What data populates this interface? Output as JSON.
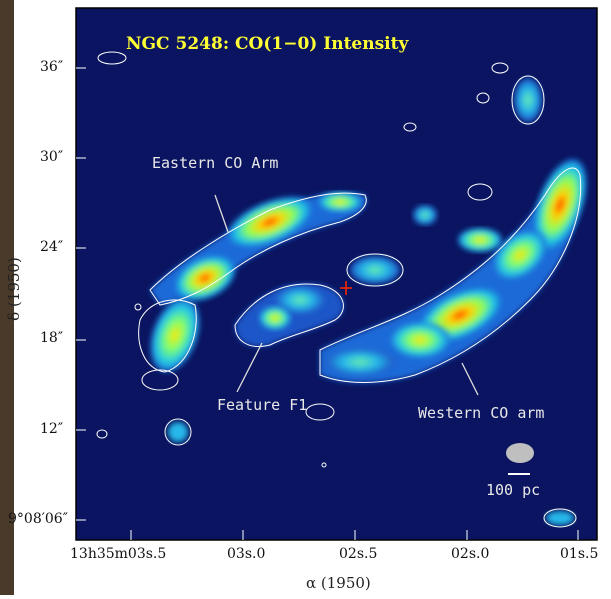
{
  "title": "NGC 5248:  CO(1−0) Intensity",
  "annotations": {
    "eastern_arm": "Eastern CO Arm",
    "western_arm": "Western CO arm",
    "feature": "Feature F1",
    "scale_bar": "100 pc"
  },
  "axes": {
    "xlabel": "α (1950)",
    "ylabel": "δ (1950)",
    "x_ticks": [
      "13h35m03s.5",
      "03s.0",
      "02s.5",
      "02s.0",
      "01s.5"
    ],
    "y_ticks": [
      "36″",
      "30″",
      "24″",
      "18″",
      "12″",
      "9°08′06″"
    ]
  },
  "colors": {
    "background": "#0a1460",
    "contour": "#ffffff",
    "title": "#ffff33",
    "annotation": "#e8e8e8",
    "peak": "#ff2a00",
    "beam": "#bfbfbf"
  }
}
